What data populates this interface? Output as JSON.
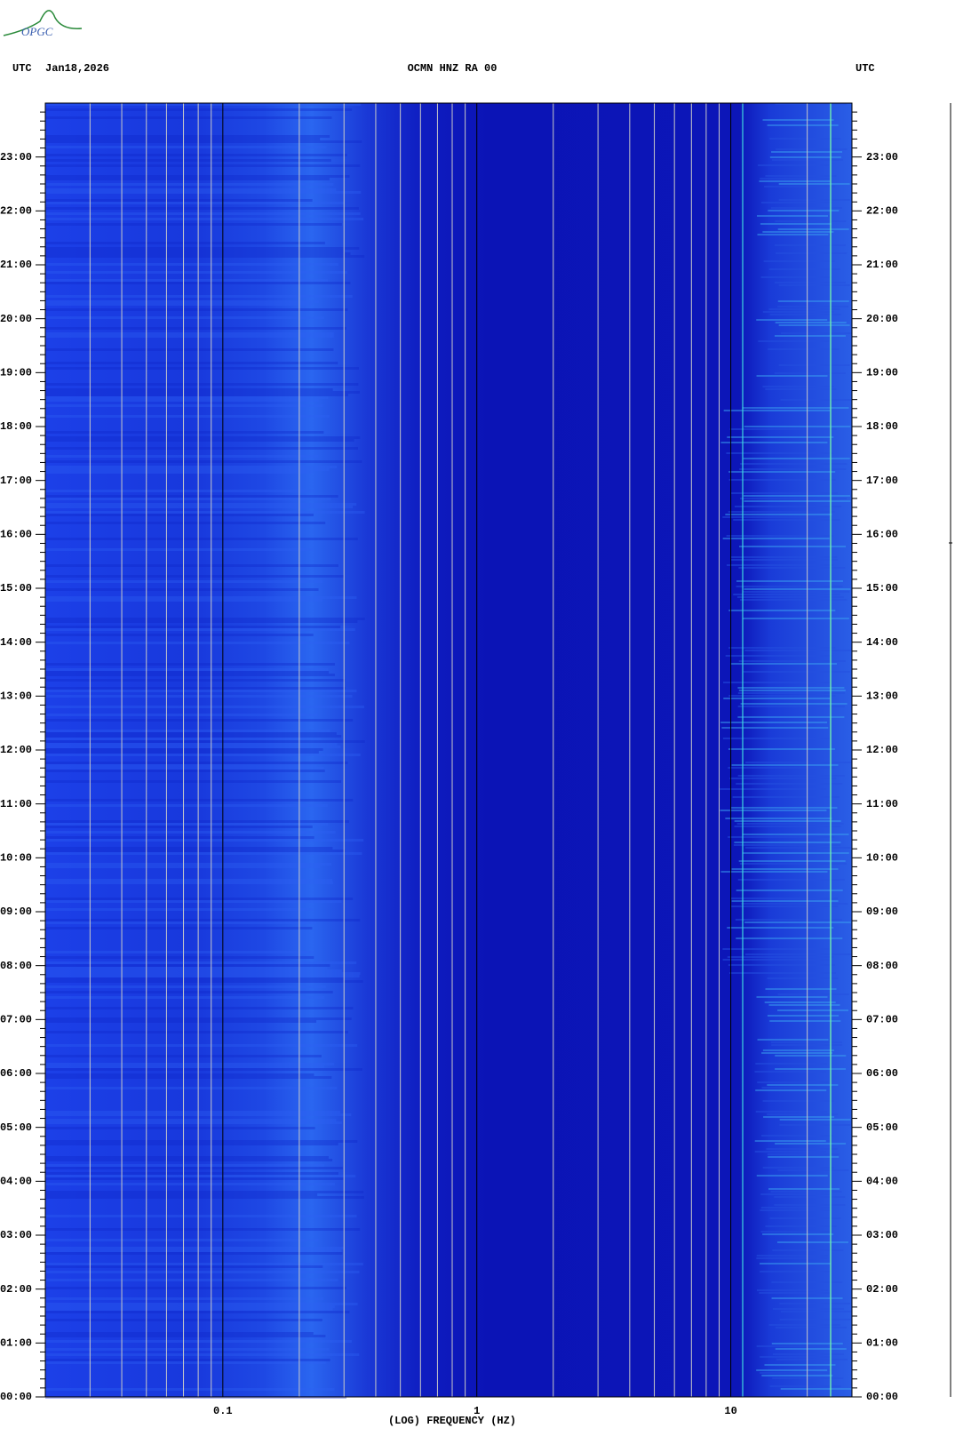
{
  "header": {
    "logo": "OPGC"
  },
  "chart_data": {
    "type": "spectrogram",
    "title": "OCMN HNZ RA 00",
    "date": "Jan18,2026",
    "time_zone": "UTC",
    "xlabel": "(LOG) FREQUENCY (HZ)",
    "xscale": "log",
    "xlim": [
      0.02,
      30
    ],
    "xticks": [
      0.1,
      1,
      10
    ],
    "xgrid": [
      0.03,
      0.04,
      0.05,
      0.06,
      0.07,
      0.08,
      0.09,
      0.2,
      0.3,
      0.4,
      0.5,
      0.6,
      0.7,
      0.8,
      0.9,
      2,
      3,
      4,
      5,
      6,
      7,
      8,
      9,
      20
    ],
    "ylim": [
      0,
      24
    ],
    "yticks": [
      {
        "value": 0,
        "label": "00:00"
      },
      {
        "value": 1,
        "label": "01:00"
      },
      {
        "value": 2,
        "label": "02:00"
      },
      {
        "value": 3,
        "label": "03:00"
      },
      {
        "value": 4,
        "label": "04:00"
      },
      {
        "value": 5,
        "label": "05:00"
      },
      {
        "value": 6,
        "label": "06:00"
      },
      {
        "value": 7,
        "label": "07:00"
      },
      {
        "value": 8,
        "label": "08:00"
      },
      {
        "value": 9,
        "label": "09:00"
      },
      {
        "value": 10,
        "label": "10:00"
      },
      {
        "value": 11,
        "label": "11:00"
      },
      {
        "value": 12,
        "label": "12:00"
      },
      {
        "value": 13,
        "label": "13:00"
      },
      {
        "value": 14,
        "label": "14:00"
      },
      {
        "value": 15,
        "label": "15:00"
      },
      {
        "value": 16,
        "label": "16:00"
      },
      {
        "value": 17,
        "label": "17:00"
      },
      {
        "value": 18,
        "label": "18:00"
      },
      {
        "value": 19,
        "label": "19:00"
      },
      {
        "value": 20,
        "label": "20:00"
      },
      {
        "value": 21,
        "label": "21:00"
      },
      {
        "value": 22,
        "label": "22:00"
      },
      {
        "value": 23,
        "label": "23:00"
      }
    ],
    "y_minor_divisions": 6
  }
}
